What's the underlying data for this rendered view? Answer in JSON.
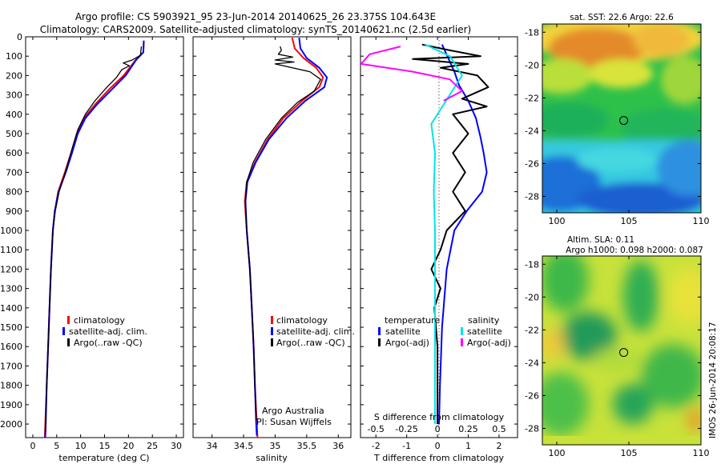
{
  "header": {
    "line1": "Argo profile: CS 5903921_95 23-Jun-2014 20140625_26 23.375S 104.643E",
    "line2": "Climatology: CARS2009. Satellite-adjusted climatology: synTS_20140621.nc (2.5d earlier)"
  },
  "colors": {
    "climatology": "#ff0000",
    "satellite": "#0000ff",
    "argo": "#000000",
    "salinity_satellite": "#00e5e5",
    "salinity_argo": "#ff00ff"
  },
  "chart_data": [
    {
      "id": "temperature-profile",
      "type": "line",
      "xlabel": "temperature (deg C)",
      "xlim": [
        -1.5,
        31.5
      ],
      "xticks": [
        "0",
        "5",
        "10",
        "15",
        "20",
        "25",
        "30"
      ],
      "ylim": [
        2070,
        0
      ],
      "yticks": [
        "0",
        "100",
        "200",
        "300",
        "400",
        "500",
        "600",
        "700",
        "800",
        "900",
        "1000",
        "1100",
        "1200",
        "1300",
        "1400",
        "1500",
        "1600",
        "1700",
        "1800",
        "1900",
        "2000"
      ],
      "legend": [
        "climatology",
        "satellite-adj. clim.",
        "Argo(..raw -QC)"
      ],
      "series": [
        {
          "name": "climatology",
          "color": "#ff0000",
          "points": [
            [
              23.2,
              20
            ],
            [
              23.1,
              80
            ],
            [
              21.5,
              120
            ],
            [
              19,
              200
            ],
            [
              16,
              270
            ],
            [
              13,
              350
            ],
            [
              10.7,
              420
            ],
            [
              9.2,
              500
            ],
            [
              8,
              600
            ],
            [
              6.7,
              700
            ],
            [
              5.3,
              800
            ],
            [
              4.6,
              900
            ],
            [
              4.2,
              1000
            ],
            [
              3.8,
              1200
            ],
            [
              3.5,
              1400
            ],
            [
              3.2,
              1600
            ],
            [
              2.9,
              1800
            ],
            [
              2.6,
              2000
            ],
            [
              2.5,
              2070
            ]
          ]
        },
        {
          "name": "satellite-adj. clim.",
          "color": "#0000ff",
          "points": [
            [
              23.2,
              20
            ],
            [
              23.1,
              80
            ],
            [
              21.6,
              120
            ],
            [
              19.4,
              200
            ],
            [
              16.6,
              270
            ],
            [
              13.4,
              350
            ],
            [
              11,
              420
            ],
            [
              9.4,
              500
            ],
            [
              8.2,
              600
            ],
            [
              6.9,
              700
            ],
            [
              5.4,
              800
            ],
            [
              4.6,
              900
            ],
            [
              4.2,
              1000
            ],
            [
              3.8,
              1200
            ],
            [
              3.5,
              1400
            ],
            [
              3.2,
              1600
            ],
            [
              2.9,
              1800
            ],
            [
              2.7,
              2000
            ],
            [
              2.6,
              2070
            ]
          ]
        },
        {
          "name": "Argo(..raw -QC)",
          "color": "#000000",
          "points": [
            [
              22.7,
              50
            ],
            [
              22.5,
              95
            ],
            [
              20.8,
              120
            ],
            [
              18.9,
              135
            ],
            [
              20.2,
              150
            ],
            [
              18.6,
              170
            ],
            [
              17.5,
              210
            ],
            [
              15.5,
              260
            ],
            [
              13,
              330
            ],
            [
              11,
              400
            ],
            [
              9.4,
              480
            ],
            [
              8.2,
              580
            ],
            [
              6.8,
              700
            ],
            [
              5.5,
              800
            ],
            [
              4.7,
              900
            ],
            [
              4.2,
              1000
            ],
            [
              3.8,
              1200
            ],
            [
              3.5,
              1400
            ],
            [
              3.2,
              1600
            ],
            [
              2.9,
              1800
            ],
            [
              2.7,
              2000
            ],
            [
              2.6,
              2050
            ]
          ]
        }
      ]
    },
    {
      "id": "salinity-profile",
      "type": "line",
      "xlabel": "salinity",
      "xlim": [
        33.7,
        36.2
      ],
      "xticks": [
        "34",
        "34.5",
        "35",
        "35.5",
        "36"
      ],
      "ylim": [
        2070,
        0
      ],
      "legend": [
        "climatology",
        "satellite-adj. clim.",
        "Argo(..raw -QC)"
      ],
      "annotation": [
        "Argo Australia",
        "PI: Susan Wijffels"
      ],
      "series": [
        {
          "name": "climatology",
          "color": "#ff0000",
          "points": [
            [
              35.27,
              5
            ],
            [
              35.31,
              60
            ],
            [
              35.45,
              110
            ],
            [
              35.65,
              160
            ],
            [
              35.76,
              210
            ],
            [
              35.7,
              260
            ],
            [
              35.43,
              330
            ],
            [
              35.13,
              420
            ],
            [
              34.88,
              530
            ],
            [
              34.68,
              650
            ],
            [
              34.55,
              750
            ],
            [
              34.52,
              850
            ],
            [
              34.55,
              1000
            ],
            [
              34.6,
              1200
            ],
            [
              34.63,
              1400
            ],
            [
              34.66,
              1600
            ],
            [
              34.68,
              1800
            ],
            [
              34.71,
              2000
            ],
            [
              34.72,
              2070
            ]
          ]
        },
        {
          "name": "satellite-adj. clim.",
          "color": "#0000ff",
          "points": [
            [
              35.38,
              5
            ],
            [
              35.4,
              60
            ],
            [
              35.5,
              110
            ],
            [
              35.7,
              160
            ],
            [
              35.82,
              210
            ],
            [
              35.78,
              260
            ],
            [
              35.48,
              330
            ],
            [
              35.18,
              420
            ],
            [
              34.9,
              530
            ],
            [
              34.69,
              650
            ],
            [
              34.56,
              750
            ],
            [
              34.53,
              850
            ],
            [
              34.55,
              1000
            ],
            [
              34.6,
              1200
            ],
            [
              34.63,
              1400
            ],
            [
              34.66,
              1600
            ],
            [
              34.68,
              1800
            ],
            [
              34.7,
              2000
            ],
            [
              34.71,
              2060
            ]
          ]
        },
        {
          "name": "Argo(..raw -QC)",
          "color": "#000000",
          "points": [
            [
              35.08,
              50
            ],
            [
              35.1,
              70
            ],
            [
              35.05,
              90
            ],
            [
              35.28,
              105
            ],
            [
              35.0,
              120
            ],
            [
              35.3,
              130
            ],
            [
              35.0,
              140
            ],
            [
              35.55,
              180
            ],
            [
              35.72,
              220
            ],
            [
              35.62,
              280
            ],
            [
              35.35,
              340
            ],
            [
              35.1,
              420
            ],
            [
              34.85,
              530
            ],
            [
              34.65,
              650
            ],
            [
              34.55,
              750
            ],
            [
              34.53,
              850
            ],
            [
              34.55,
              1000
            ],
            [
              34.6,
              1200
            ],
            [
              34.63,
              1400
            ],
            [
              34.66,
              1600
            ],
            [
              34.68,
              1800
            ],
            [
              34.7,
              1980
            ]
          ]
        }
      ]
    },
    {
      "id": "difference-profile",
      "type": "line",
      "xlabel": "T difference from climatology",
      "xlabel_top": "S difference from climatology",
      "xlim": [
        -2.5,
        2.6
      ],
      "xticks": [
        "-2",
        "-1",
        "0",
        "1",
        "2"
      ],
      "xlim_salinity": [
        -0.625,
        0.65
      ],
      "xticks_salinity": [
        "-0.5",
        "-0.25",
        "0",
        "0.25",
        "0.5"
      ],
      "ylim": [
        2070,
        0
      ],
      "legend_title_t": "temperature",
      "legend_title_s": "salinity",
      "legend": [
        "satellite",
        "Argo(-adj)",
        "satellite",
        "Argo(-adj)"
      ],
      "series": [
        {
          "name": "T satellite",
          "color": "#0000ff",
          "points": [
            [
              0.15,
              40
            ],
            [
              0.35,
              110
            ],
            [
              0.55,
              180
            ],
            [
              0.7,
              250
            ],
            [
              1.0,
              330
            ],
            [
              1.25,
              420
            ],
            [
              1.4,
              520
            ],
            [
              1.5,
              600
            ],
            [
              1.6,
              700
            ],
            [
              1.45,
              800
            ],
            [
              0.95,
              900
            ],
            [
              0.55,
              1000
            ],
            [
              0.3,
              1200
            ],
            [
              0.15,
              1500
            ],
            [
              0.08,
              1800
            ],
            [
              0.05,
              2000
            ]
          ]
        },
        {
          "name": "T Argo(-adj)",
          "color": "#000000",
          "points": [
            [
              -0.5,
              40
            ],
            [
              0.4,
              70
            ],
            [
              1.4,
              100
            ],
            [
              -0.8,
              115
            ],
            [
              1.0,
              140
            ],
            [
              0.1,
              160
            ],
            [
              1.3,
              200
            ],
            [
              1.65,
              260
            ],
            [
              0.8,
              320
            ],
            [
              1.6,
              360
            ],
            [
              0.5,
              400
            ],
            [
              1.0,
              500
            ],
            [
              0.5,
              600
            ],
            [
              0.9,
              700
            ],
            [
              0.5,
              800
            ],
            [
              0.9,
              900
            ],
            [
              0.3,
              1000
            ],
            [
              0.1,
              1100
            ],
            [
              -0.2,
              1200
            ],
            [
              0.1,
              1300
            ],
            [
              -0.1,
              1400
            ],
            [
              0.0,
              1600
            ],
            [
              0.0,
              1800
            ],
            [
              0.0,
              2000
            ]
          ]
        },
        {
          "name": "S satellite",
          "color": "#00e5e5",
          "points": [
            [
              -0.1,
              40
            ],
            [
              0.1,
              100
            ],
            [
              0.2,
              200
            ],
            [
              0.12,
              280
            ],
            [
              0.05,
              350
            ],
            [
              -0.05,
              450
            ],
            [
              -0.02,
              600
            ],
            [
              -0.03,
              800
            ],
            [
              -0.02,
              1000
            ],
            [
              -0.02,
              1300
            ],
            [
              -0.02,
              1600
            ],
            [
              -0.02,
              2000
            ]
          ]
        },
        {
          "name": "S Argo(-adj)",
          "color": "#ff00ff",
          "points": [
            [
              -0.3,
              50
            ],
            [
              -0.55,
              90
            ],
            [
              -0.62,
              140
            ],
            [
              -0.2,
              180
            ],
            [
              0.1,
              220
            ],
            [
              0.2,
              280
            ],
            [
              0.05,
              330
            ]
          ]
        }
      ]
    },
    {
      "id": "sst-map",
      "type": "heatmap",
      "title": "sat. SST: 22.6  Argo: 22.6",
      "xlim": [
        99,
        110
      ],
      "ylim": [
        -29,
        -17.5
      ],
      "xticks": [
        "100",
        "105",
        "110"
      ],
      "yticks": [
        "-18",
        "-20",
        "-22",
        "-24",
        "-26",
        "-28"
      ],
      "marker": [
        104.643,
        -23.375
      ]
    },
    {
      "id": "sla-map",
      "type": "heatmap",
      "title_line1": "Altim. SLA: 0.11",
      "title_line2": "Argo h1000: 0.098 h2000: 0.087",
      "xlim": [
        99,
        110
      ],
      "ylim": [
        -29,
        -17.5
      ],
      "xticks": [
        "100",
        "105",
        "110"
      ],
      "yticks": [
        "-18",
        "-20",
        "-22",
        "-24",
        "-26",
        "-28"
      ],
      "marker": [
        104.643,
        -23.375
      ]
    }
  ],
  "watermark": "IMOS 26-Jun-2014 20:08:17"
}
